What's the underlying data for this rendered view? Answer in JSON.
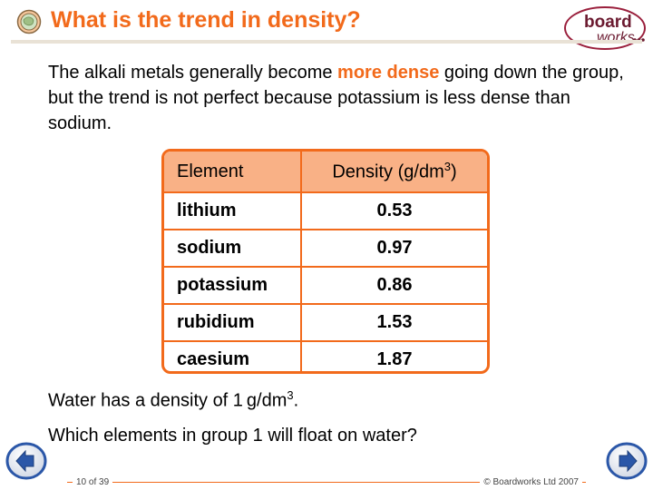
{
  "header": {
    "title": "What is the trend in density?",
    "brand_top": "board",
    "brand_bottom": "works"
  },
  "intro": {
    "before": "The alkali metals generally become ",
    "highlight": "more dense",
    "after": " going down the group, but the trend is not perfect because potassium is less dense than sodium."
  },
  "table": {
    "headers": [
      "Element",
      "Density (g/dm",
      "3",
      ")"
    ],
    "rows": [
      {
        "element": "lithium",
        "density": "0.53"
      },
      {
        "element": "sodium",
        "density": "0.97"
      },
      {
        "element": "potassium",
        "density": "0.86"
      },
      {
        "element": "rubidium",
        "density": "1.53"
      },
      {
        "element": "caesium",
        "density": "1.87"
      }
    ]
  },
  "water": {
    "text": "Water has a density of 1 g/dm",
    "sup": "3",
    "end": "."
  },
  "question": "Which elements in group 1 will float on water?",
  "footer": {
    "page": "10 of 39",
    "copyright": "© Boardworks Ltd 2007"
  },
  "colors": {
    "accent": "#f26a1b",
    "header_fill": "#f9b186",
    "nav_blue": "#2b57a8"
  },
  "icons": {
    "logo": "boardworks-globe-icon",
    "prev": "arrow-left-icon",
    "next": "arrow-right-icon"
  }
}
